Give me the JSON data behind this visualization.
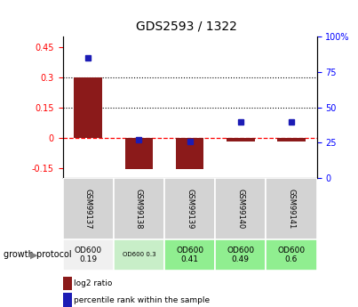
{
  "title": "GDS2593 / 1322",
  "samples": [
    "GSM99137",
    "GSM99138",
    "GSM99139",
    "GSM99140",
    "GSM99141"
  ],
  "log2_ratio": [
    0.3,
    -0.155,
    -0.155,
    -0.02,
    -0.02
  ],
  "percentile_rank": [
    85,
    27,
    26,
    40,
    40
  ],
  "ylim_left": [
    -0.2,
    0.5
  ],
  "ylim_right": [
    0,
    100
  ],
  "yticks_left": [
    -0.15,
    0.0,
    0.15,
    0.3,
    0.45
  ],
  "yticks_right": [
    0,
    25,
    50,
    75,
    100
  ],
  "bar_color": "#8B1A1A",
  "dot_color": "#1C1CB5",
  "growth_protocol_label": "growth protocol",
  "sample_labels": [
    "OD600\n0.19",
    "OD600 0.3",
    "OD600\n0.41",
    "OD600\n0.49",
    "OD600\n0.6"
  ],
  "sample_bg_colors": [
    "#f0f0f0",
    "#c8eec8",
    "#90ee90",
    "#90ee90",
    "#90ee90"
  ],
  "legend_red_label": "log2 ratio",
  "legend_blue_label": "percentile rank within the sample"
}
